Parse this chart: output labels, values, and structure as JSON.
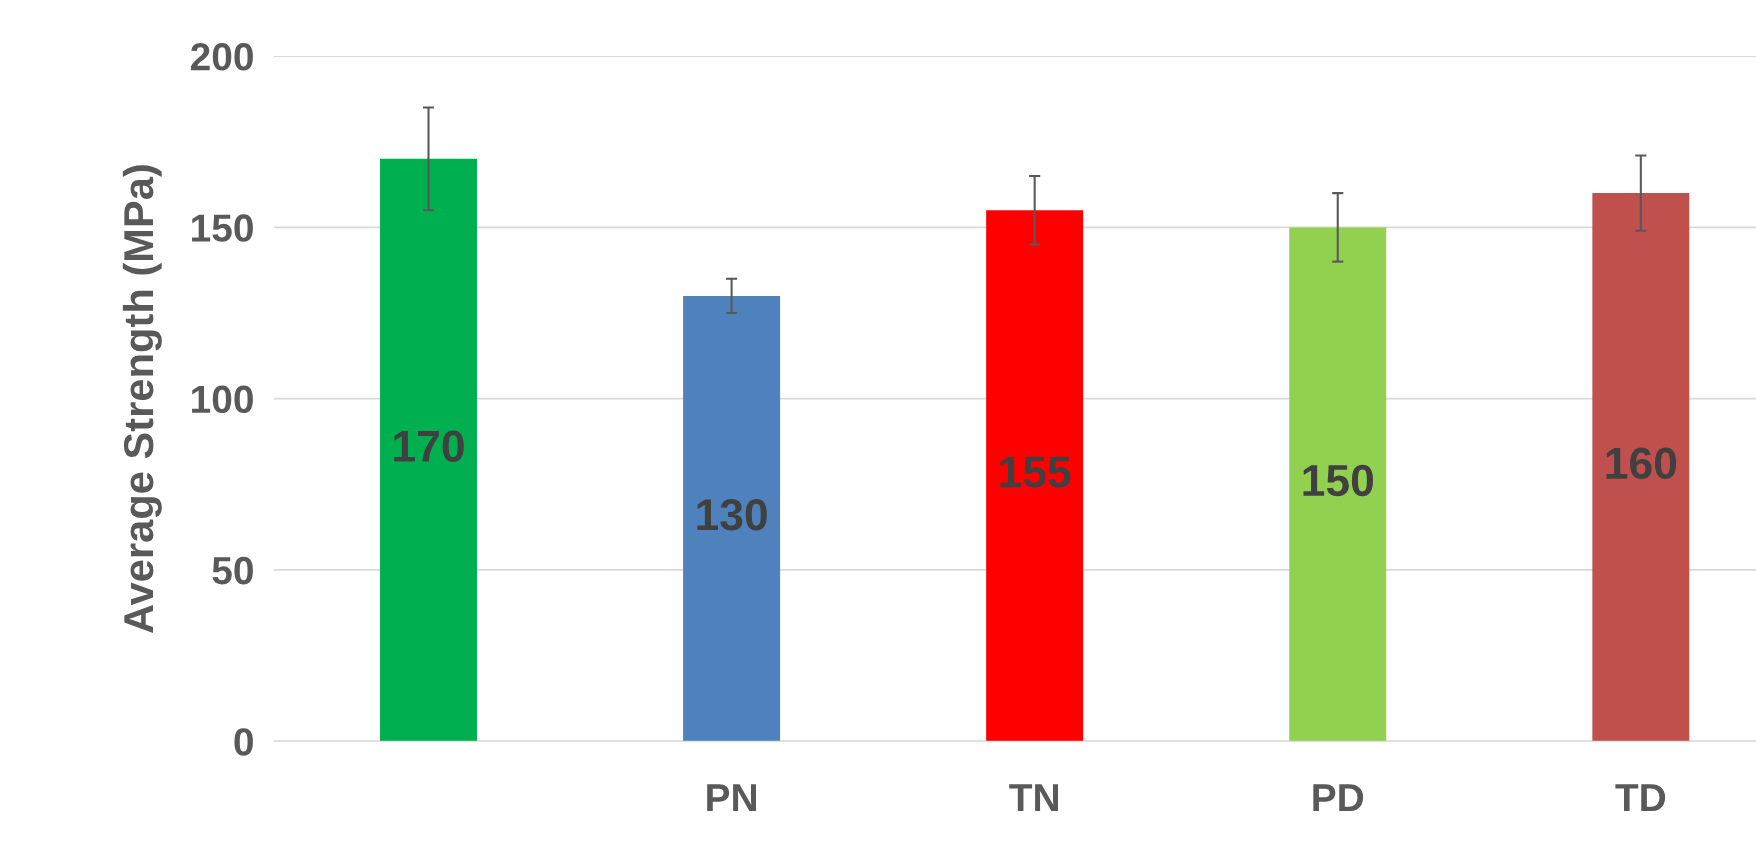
{
  "chart_data": {
    "type": "bar",
    "ylabel": "Average Strength (MPa)",
    "categories": [
      null,
      "PN",
      "TN",
      "PD",
      "TD"
    ],
    "values": [
      170,
      130,
      155,
      150,
      160
    ],
    "errors": [
      15,
      5,
      10,
      10,
      11
    ],
    "colors": [
      "#00b050",
      "#4f81bd",
      "#ff0000",
      "#92d050",
      "#c0504d"
    ],
    "ylim": [
      0,
      200
    ],
    "yticks": [
      0,
      50,
      100,
      150,
      200
    ],
    "grid": "y",
    "data_labels": true
  }
}
